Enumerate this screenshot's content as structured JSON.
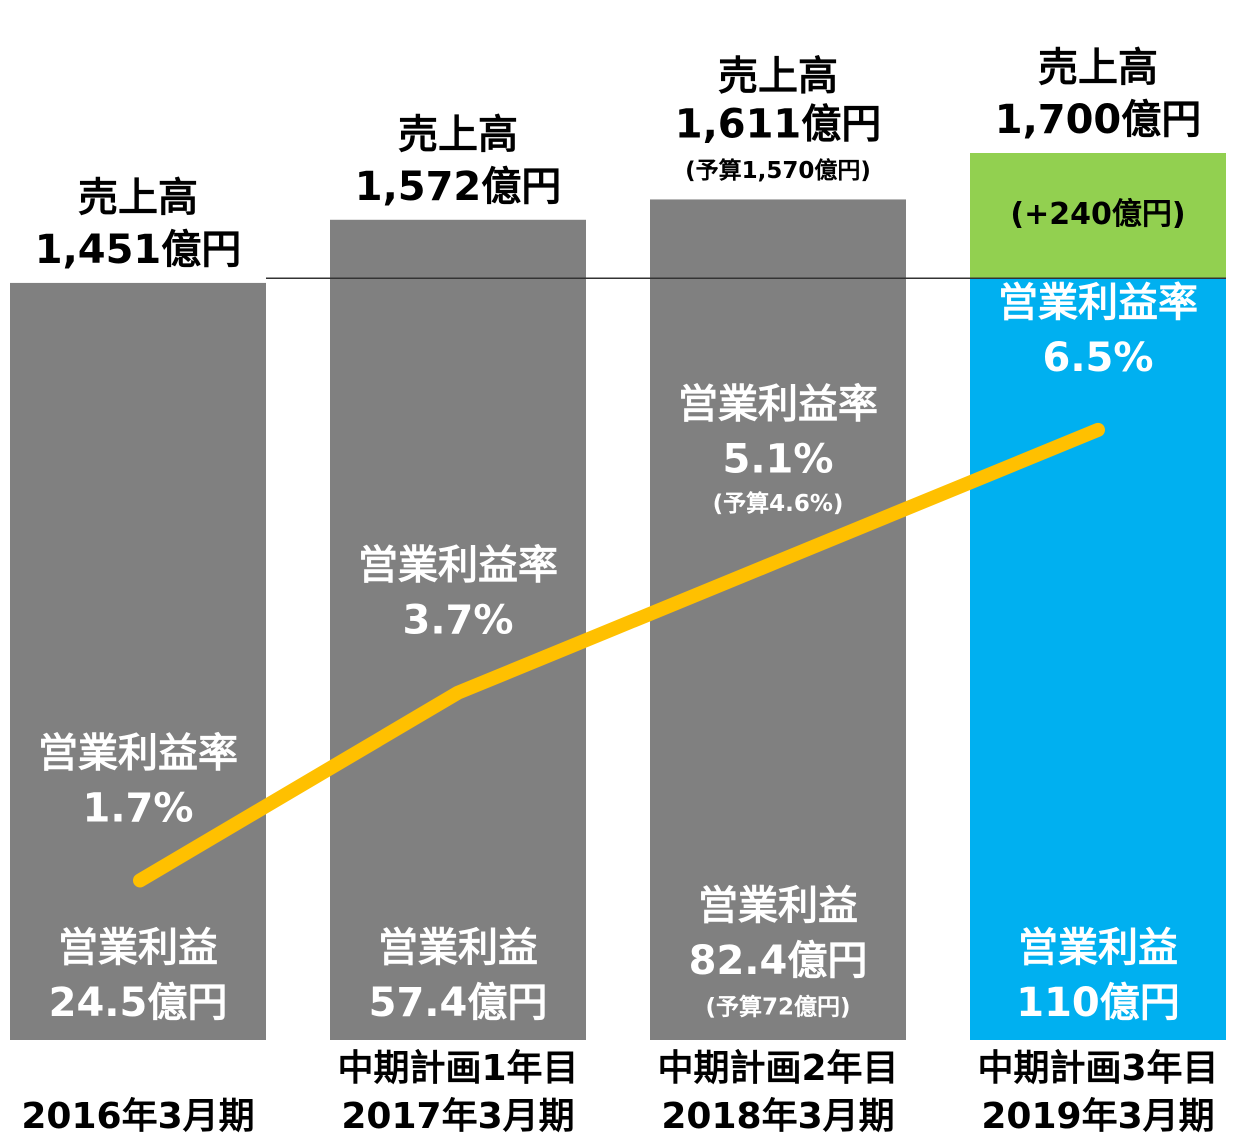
{
  "chart_data": {
    "type": "bar_line",
    "categories": [
      "2016年3月期",
      "2017年3月期",
      "2018年3月期",
      "2019年3月期"
    ],
    "plan_labels": [
      null,
      "中期計画1年目",
      "中期計画2年目",
      "中期計画3年目"
    ],
    "ylim": [
      0,
      1700
    ],
    "y2lim": [
      0,
      9.45
    ],
    "sales": {
      "name": "売上高",
      "values": [
        1451,
        1572,
        1611,
        1700
      ],
      "value_labels": [
        "1,451億円",
        "1,572億円",
        "1,611億円",
        "1,700億円"
      ],
      "budget_labels": [
        null,
        null,
        "(予算1,570億円)",
        null
      ],
      "colors": [
        "#808080",
        "#808080",
        "#808080",
        "#00b0f0"
      ],
      "increment": {
        "index": 3,
        "value": 240,
        "label": "(+240億円)",
        "color": "#92d050"
      }
    },
    "margin": {
      "name": "営業利益率",
      "color": "#ffc000",
      "axis": "y2",
      "values": [
        1.7,
        3.7,
        5.1,
        6.5
      ],
      "value_labels": [
        "1.7%",
        "3.7%",
        "5.1%",
        "6.5%"
      ],
      "budget_labels": [
        null,
        null,
        "(予算4.6%)",
        null
      ]
    },
    "profit": {
      "name": "営業利益",
      "values": [
        24.5,
        57.4,
        82.4,
        110
      ],
      "value_labels": [
        "24.5億円",
        "57.4億円",
        "82.4億円",
        "110億円"
      ],
      "budget_labels": [
        null,
        null,
        "(予算72億円)",
        null
      ]
    }
  }
}
